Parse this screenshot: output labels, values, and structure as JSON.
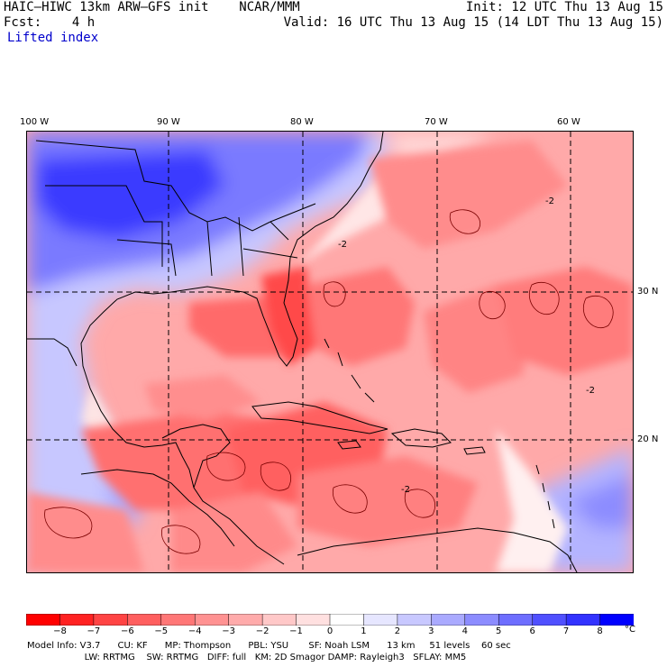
{
  "header": {
    "left_line1": "HAIC–HIWC 13km ARW–GFS init    NCAR/MMM",
    "left_line2": "Fcst:    4 h",
    "field_name": "Lifted index",
    "right_line1": "Init: 12 UTC Thu 13 Aug 15",
    "right_line2": "Valid: 16 UTC Thu 13 Aug 15 (14 LDT Thu 13 Aug 15)"
  },
  "map": {
    "lon_labels": [
      "100 W",
      "90 W",
      "80 W",
      "70 W",
      "60 W"
    ],
    "lat_labels": [
      "30 N",
      "20 N"
    ],
    "contour_labels": [
      "-2",
      "-2",
      "-2",
      "-2"
    ]
  },
  "colorbar": {
    "ticks": [
      "−8",
      "−7",
      "−6",
      "−5",
      "−4",
      "−3",
      "−2",
      "−1",
      "0",
      "1",
      "2",
      "3",
      "4",
      "5",
      "6",
      "7",
      "8"
    ],
    "unit": "°C",
    "colors": [
      "#ff0000",
      "#ff2222",
      "#ff4444",
      "#ff5f5f",
      "#ff7777",
      "#ff9292",
      "#ffabab",
      "#ffc8c8",
      "#ffe0e0",
      "#ffffff",
      "#e6e6ff",
      "#c8c8ff",
      "#aaaaff",
      "#8c8cff",
      "#6e6eff",
      "#5050ff",
      "#3232ff",
      "#0000ff"
    ]
  },
  "footer": {
    "line1": "Model Info: V3.7      CU: KF      MP: Thompson      PBL: YSU       SF: Noah LSM      13 km     51 levels    60 sec",
    "line2": "                    LW: RRTMG    SW: RRTMG   DIFF: full   KM: 2D Smagor DAMP: Rayleigh3   SFLAY: MM5"
  }
}
